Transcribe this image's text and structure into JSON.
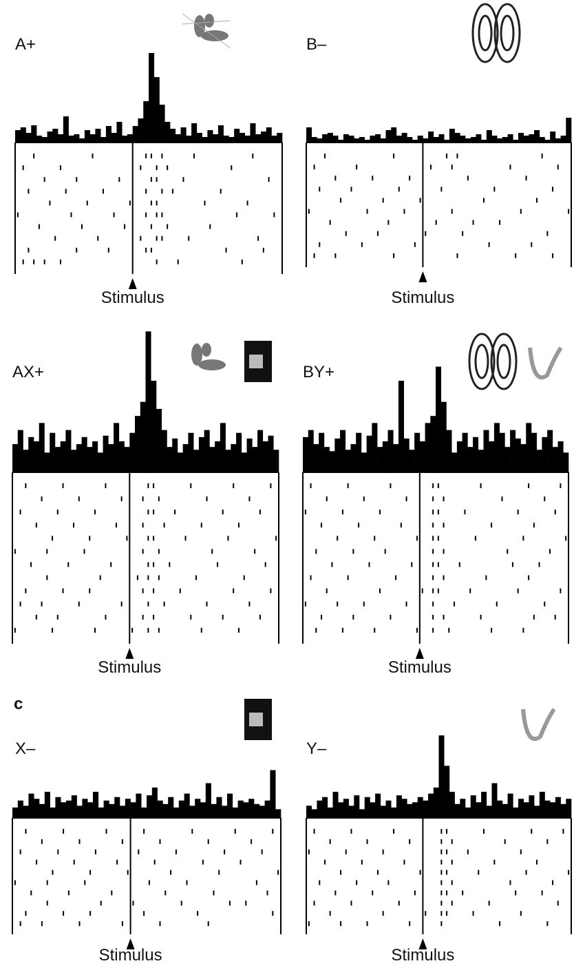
{
  "figure_label": "c",
  "chart_data": [
    {
      "type": "psth",
      "label": "A+",
      "stimulus_label": "Stimulus",
      "xlim": [
        0,
        50
      ],
      "ylim": [
        0,
        130
      ],
      "stimulus_x": 22,
      "values": [
        18,
        22,
        14,
        25,
        10,
        8,
        16,
        20,
        12,
        38,
        10,
        12,
        6,
        18,
        12,
        20,
        8,
        24,
        14,
        30,
        10,
        12,
        24,
        35,
        60,
        130,
        95,
        55,
        30,
        20,
        12,
        22,
        10,
        28,
        14,
        8,
        18,
        12,
        25,
        10,
        8,
        20,
        14,
        10,
        28,
        12,
        16,
        22,
        10,
        14
      ],
      "raster": [
        [
          3,
          14,
          24,
          25,
          27,
          33,
          44
        ],
        [
          1,
          8,
          23,
          26,
          28,
          40
        ],
        [
          5,
          11,
          19,
          25,
          26,
          31,
          47
        ],
        [
          2,
          9,
          16,
          24,
          27,
          29,
          38
        ],
        [
          6,
          13,
          21,
          25,
          26,
          35,
          43
        ],
        [
          0,
          10,
          18,
          24,
          26,
          27,
          41,
          48
        ],
        [
          4,
          12,
          20,
          25,
          28,
          36
        ],
        [
          7,
          15,
          23,
          26,
          27,
          32,
          45
        ],
        [
          2,
          11,
          17,
          24,
          25,
          39,
          46
        ],
        [
          1,
          3,
          5,
          8,
          26,
          30,
          42
        ]
      ]
    },
    {
      "type": "psth",
      "label": "B–",
      "stimulus_label": "Stimulus",
      "xlim": [
        0,
        50
      ],
      "ylim": [
        0,
        130
      ],
      "stimulus_x": 22,
      "values": [
        22,
        8,
        6,
        12,
        14,
        10,
        4,
        12,
        10,
        6,
        8,
        4,
        10,
        12,
        6,
        18,
        22,
        10,
        14,
        8,
        4,
        10,
        6,
        16,
        8,
        12,
        4,
        20,
        14,
        10,
        6,
        8,
        12,
        4,
        18,
        10,
        6,
        8,
        12,
        4,
        14,
        10,
        12,
        18,
        8,
        4,
        16,
        6,
        10,
        36
      ],
      "raster": [
        [
          3,
          16,
          26,
          28,
          44
        ],
        [
          1,
          9,
          23,
          27,
          38,
          47
        ],
        [
          5,
          12,
          19,
          30,
          41
        ],
        [
          2,
          8,
          17,
          25,
          35,
          46
        ],
        [
          6,
          14,
          21,
          33,
          43
        ],
        [
          0,
          11,
          18,
          27,
          40,
          49
        ],
        [
          4,
          15,
          24,
          31,
          36
        ],
        [
          7,
          13,
          22,
          29,
          45
        ],
        [
          2,
          10,
          20,
          34,
          42
        ],
        [
          1,
          5,
          16,
          28,
          39,
          46
        ]
      ]
    },
    {
      "type": "psth",
      "label": "AX+",
      "stimulus_label": "Stimulus",
      "xlim": [
        0,
        50
      ],
      "ylim": [
        0,
        130
      ],
      "stimulus_x": 22,
      "values": [
        20,
        30,
        16,
        25,
        22,
        35,
        14,
        28,
        18,
        22,
        30,
        16,
        20,
        25,
        18,
        22,
        14,
        26,
        20,
        35,
        22,
        18,
        28,
        40,
        50,
        100,
        65,
        45,
        30,
        18,
        24,
        14,
        20,
        28,
        16,
        25,
        30,
        18,
        22,
        35,
        16,
        20,
        28,
        14,
        24,
        18,
        30,
        22,
        26,
        16
      ],
      "raster": [
        [
          2,
          9,
          17,
          25,
          26,
          33,
          41,
          48
        ],
        [
          5,
          12,
          20,
          24,
          27,
          36,
          44
        ],
        [
          1,
          8,
          15,
          25,
          26,
          30,
          39,
          46
        ],
        [
          4,
          11,
          19,
          24,
          28,
          35,
          42
        ],
        [
          7,
          14,
          21,
          25,
          26,
          32,
          40,
          49
        ],
        [
          0,
          6,
          13,
          24,
          27,
          37,
          45
        ],
        [
          3,
          10,
          18,
          25,
          26,
          29,
          38,
          47
        ],
        [
          6,
          16,
          23,
          25,
          27,
          34,
          43
        ],
        [
          2,
          9,
          14,
          24,
          26,
          31,
          41,
          48
        ],
        [
          1,
          5,
          12,
          20,
          25,
          28,
          36,
          44
        ],
        [
          4,
          8,
          17,
          24,
          26,
          33,
          39,
          46
        ],
        [
          0,
          7,
          15,
          22,
          25,
          27,
          35,
          42
        ]
      ]
    },
    {
      "type": "psth",
      "label": "BY+",
      "stimulus_label": "Stimulus",
      "xlim": [
        0,
        50
      ],
      "ylim": [
        0,
        130
      ],
      "stimulus_x": 22,
      "values": [
        25,
        30,
        20,
        28,
        18,
        15,
        24,
        30,
        16,
        20,
        28,
        14,
        26,
        35,
        18,
        22,
        30,
        20,
        65,
        24,
        16,
        28,
        22,
        35,
        40,
        75,
        50,
        30,
        14,
        22,
        28,
        18,
        25,
        16,
        30,
        22,
        35,
        28,
        18,
        30,
        24,
        20,
        35,
        28,
        16,
        25,
        30,
        18,
        22,
        14
      ],
      "raster": [
        [
          1,
          8,
          16,
          24,
          25,
          33,
          42,
          48
        ],
        [
          4,
          11,
          19,
          24,
          26,
          37,
          45
        ],
        [
          0,
          7,
          14,
          24,
          25,
          30,
          40,
          47
        ],
        [
          3,
          10,
          18,
          24,
          26,
          35,
          43
        ],
        [
          6,
          13,
          21,
          24,
          25,
          32,
          41,
          49
        ],
        [
          2,
          9,
          15,
          24,
          26,
          38,
          46
        ],
        [
          5,
          12,
          20,
          24,
          25,
          29,
          39,
          44
        ],
        [
          1,
          8,
          17,
          24,
          26,
          34,
          42
        ],
        [
          4,
          14,
          22,
          24,
          25,
          31,
          40,
          48
        ],
        [
          0,
          6,
          11,
          19,
          24,
          28,
          36,
          45
        ],
        [
          3,
          9,
          16,
          24,
          26,
          33,
          43,
          47
        ],
        [
          2,
          7,
          13,
          21,
          24,
          27,
          35,
          41
        ]
      ]
    },
    {
      "type": "psth",
      "label": "X–",
      "stimulus_label": "Stimulus",
      "xlim": [
        0,
        50
      ],
      "ylim": [
        0,
        130
      ],
      "stimulus_x": 22,
      "values": [
        12,
        20,
        14,
        28,
        22,
        16,
        30,
        12,
        24,
        18,
        20,
        26,
        14,
        22,
        18,
        30,
        12,
        20,
        16,
        24,
        14,
        22,
        18,
        28,
        12,
        26,
        35,
        20,
        16,
        24,
        12,
        20,
        28,
        14,
        22,
        18,
        40,
        16,
        24,
        14,
        28,
        12,
        20,
        18,
        22,
        16,
        14,
        20,
        55,
        10
      ],
      "raster": [
        [
          2,
          9,
          17,
          24,
          33,
          41,
          48
        ],
        [
          5,
          12,
          20,
          27,
          36,
          44
        ],
        [
          1,
          8,
          15,
          23,
          30,
          39,
          46
        ],
        [
          4,
          11,
          19,
          26,
          35,
          42
        ],
        [
          7,
          14,
          21,
          29,
          38,
          49
        ],
        [
          0,
          6,
          13,
          25,
          32,
          45
        ],
        [
          3,
          10,
          18,
          28,
          37,
          47
        ],
        [
          6,
          16,
          22,
          31,
          40,
          43
        ],
        [
          2,
          9,
          14,
          24,
          34,
          48
        ],
        [
          1,
          5,
          12,
          20,
          27,
          36
        ]
      ]
    },
    {
      "type": "psth",
      "label": "Y–",
      "stimulus_label": "Stimulus",
      "xlim": [
        0,
        50
      ],
      "ylim": [
        0,
        130
      ],
      "stimulus_x": 22,
      "values": [
        14,
        10,
        20,
        24,
        12,
        30,
        18,
        22,
        14,
        26,
        10,
        24,
        18,
        28,
        14,
        20,
        12,
        26,
        22,
        16,
        18,
        24,
        20,
        28,
        35,
        95,
        60,
        30,
        16,
        22,
        12,
        26,
        18,
        30,
        14,
        40,
        20,
        16,
        28,
        12,
        22,
        18,
        26,
        14,
        30,
        20,
        18,
        24,
        16,
        22
      ],
      "raster": [
        [
          1,
          8,
          16,
          25,
          26,
          33,
          42,
          48
        ],
        [
          4,
          11,
          19,
          25,
          27,
          37,
          45
        ],
        [
          0,
          7,
          14,
          25,
          26,
          30,
          40
        ],
        [
          3,
          10,
          18,
          25,
          27,
          35,
          43
        ],
        [
          6,
          13,
          21,
          25,
          26,
          32,
          41,
          49
        ],
        [
          2,
          9,
          15,
          25,
          27,
          38,
          46
        ],
        [
          5,
          12,
          20,
          25,
          26,
          29,
          39,
          44
        ],
        [
          1,
          8,
          17,
          25,
          27,
          34,
          47
        ],
        [
          4,
          14,
          22,
          25,
          26,
          31,
          40
        ],
        [
          0,
          6,
          11,
          19,
          25,
          36,
          45
        ]
      ]
    }
  ]
}
